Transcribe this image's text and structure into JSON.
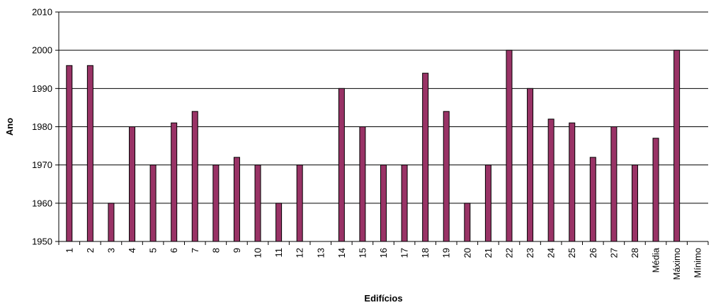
{
  "chart_data": {
    "type": "bar",
    "title": "",
    "xlabel": "Edifícios",
    "ylabel": "Ano",
    "ylim": [
      1950,
      2010
    ],
    "yticks": [
      1950,
      1960,
      1970,
      1980,
      1990,
      2000,
      2010
    ],
    "grid": true,
    "legend": "none",
    "bar_color": "#993366",
    "bar_stroke": "#000000",
    "categories": [
      "1",
      "2",
      "3",
      "4",
      "5",
      "6",
      "7",
      "8",
      "9",
      "10",
      "11",
      "12",
      "13",
      "14",
      "15",
      "16",
      "17",
      "18",
      "19",
      "20",
      "21",
      "22",
      "23",
      "24",
      "25",
      "26",
      "27",
      "28",
      "Média",
      "Máximo",
      "Mínimo"
    ],
    "values": [
      1996,
      1996,
      1960,
      1980,
      1970,
      1981,
      1984,
      1970,
      1972,
      1970,
      1960,
      1970,
      null,
      1990,
      1980,
      1970,
      1970,
      1994,
      1984,
      1960,
      1970,
      2000,
      1990,
      1982,
      1981,
      1972,
      1980,
      1970,
      1977,
      2000,
      null
    ]
  }
}
